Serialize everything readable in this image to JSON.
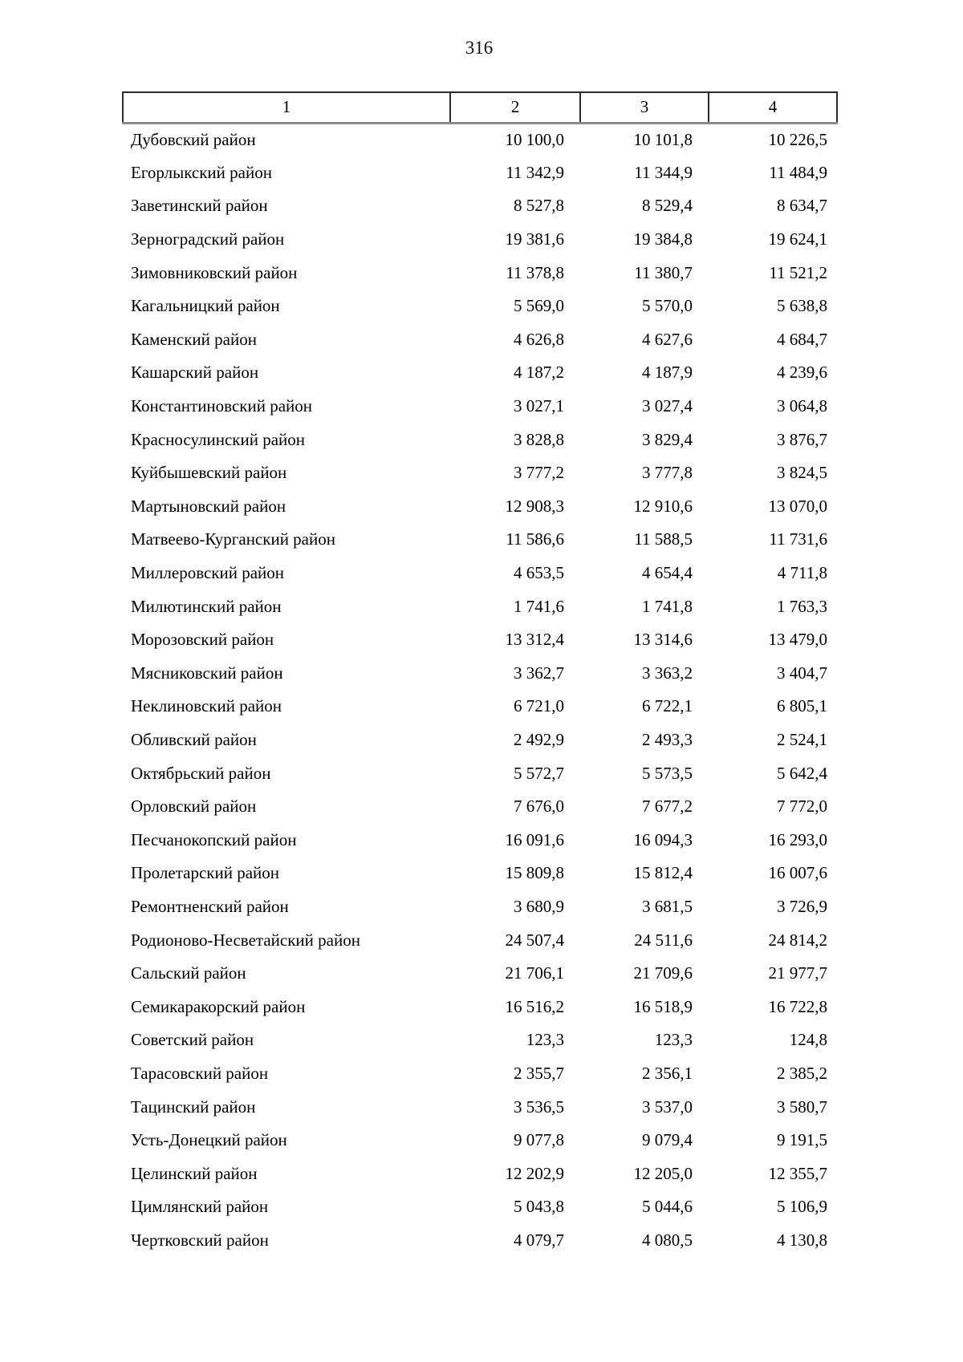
{
  "page": {
    "number": "316"
  },
  "table": {
    "header": {
      "col1": "1",
      "col2": "2",
      "col3": "3",
      "col4": "4"
    },
    "rows": [
      {
        "name": "Дубовский район",
        "c2": "10 100,0",
        "c3": "10 101,8",
        "c4": "10 226,5"
      },
      {
        "name": "Егорлыкский район",
        "c2": "11 342,9",
        "c3": "11 344,9",
        "c4": "11 484,9"
      },
      {
        "name": "Заветинский район",
        "c2": "8 527,8",
        "c3": "8 529,4",
        "c4": "8 634,7"
      },
      {
        "name": "Зерноградский район",
        "c2": "19 381,6",
        "c3": "19 384,8",
        "c4": "19 624,1"
      },
      {
        "name": "Зимовниковский район",
        "c2": "11 378,8",
        "c3": "11 380,7",
        "c4": "11 521,2"
      },
      {
        "name": "Кагальницкий район",
        "c2": "5 569,0",
        "c3": "5 570,0",
        "c4": "5 638,8"
      },
      {
        "name": "Каменский район",
        "c2": "4 626,8",
        "c3": "4 627,6",
        "c4": "4 684,7"
      },
      {
        "name": "Кашарский район",
        "c2": "4 187,2",
        "c3": "4 187,9",
        "c4": "4 239,6"
      },
      {
        "name": "Константиновский район",
        "c2": "3 027,1",
        "c3": "3 027,4",
        "c4": "3 064,8"
      },
      {
        "name": "Красносулинский район",
        "c2": "3 828,8",
        "c3": "3 829,4",
        "c4": "3 876,7"
      },
      {
        "name": "Куйбышевский район",
        "c2": "3 777,2",
        "c3": "3 777,8",
        "c4": "3 824,5"
      },
      {
        "name": "Мартыновский район",
        "c2": "12 908,3",
        "c3": "12 910,6",
        "c4": "13 070,0"
      },
      {
        "name": "Матвеево-Курганский район",
        "c2": "11 586,6",
        "c3": "11 588,5",
        "c4": "11 731,6"
      },
      {
        "name": "Миллеровский район",
        "c2": "4 653,5",
        "c3": "4 654,4",
        "c4": "4 711,8"
      },
      {
        "name": "Милютинский район",
        "c2": "1 741,6",
        "c3": "1 741,8",
        "c4": "1 763,3"
      },
      {
        "name": "Морозовский район",
        "c2": "13 312,4",
        "c3": "13 314,6",
        "c4": "13 479,0"
      },
      {
        "name": "Мясниковский район",
        "c2": "3 362,7",
        "c3": "3 363,2",
        "c4": "3 404,7"
      },
      {
        "name": "Неклиновский район",
        "c2": "6 721,0",
        "c3": "6 722,1",
        "c4": "6 805,1"
      },
      {
        "name": "Обливский район",
        "c2": "2 492,9",
        "c3": "2 493,3",
        "c4": "2 524,1"
      },
      {
        "name": "Октябрьский район",
        "c2": "5 572,7",
        "c3": "5 573,5",
        "c4": "5 642,4"
      },
      {
        "name": "Орловский район",
        "c2": "7 676,0",
        "c3": "7 677,2",
        "c4": "7 772,0"
      },
      {
        "name": "Песчанокопский район",
        "c2": "16 091,6",
        "c3": "16 094,3",
        "c4": "16 293,0"
      },
      {
        "name": "Пролетарский район",
        "c2": "15 809,8",
        "c3": "15 812,4",
        "c4": "16 007,6"
      },
      {
        "name": "Ремонтненский район",
        "c2": "3 680,9",
        "c3": "3 681,5",
        "c4": "3 726,9"
      },
      {
        "name": "Родионово-Несветайский район",
        "c2": "24 507,4",
        "c3": "24 511,6",
        "c4": "24 814,2"
      },
      {
        "name": "Сальский район",
        "c2": "21 706,1",
        "c3": "21 709,6",
        "c4": "21 977,7"
      },
      {
        "name": "Семикаракорский район",
        "c2": "16 516,2",
        "c3": "16 518,9",
        "c4": "16 722,8"
      },
      {
        "name": "Советский район",
        "c2": "123,3",
        "c3": "123,3",
        "c4": "124,8"
      },
      {
        "name": "Тарасовский район",
        "c2": "2 355,7",
        "c3": "2 356,1",
        "c4": "2 385,2"
      },
      {
        "name": "Тацинский район",
        "c2": "3 536,5",
        "c3": "3 537,0",
        "c4": "3 580,7"
      },
      {
        "name": "Усть-Донецкий район",
        "c2": "9 077,8",
        "c3": "9 079,4",
        "c4": "9 191,5"
      },
      {
        "name": "Целинский район",
        "c2": "12 202,9",
        "c3": "12 205,0",
        "c4": "12 355,7"
      },
      {
        "name": "Цимлянский район",
        "c2": "5 043,8",
        "c3": "5 044,6",
        "c4": "5 106,9"
      },
      {
        "name": "Чертковский район",
        "c2": "4 079,7",
        "c3": "4 080,5",
        "c4": "4 130,8"
      }
    ]
  }
}
